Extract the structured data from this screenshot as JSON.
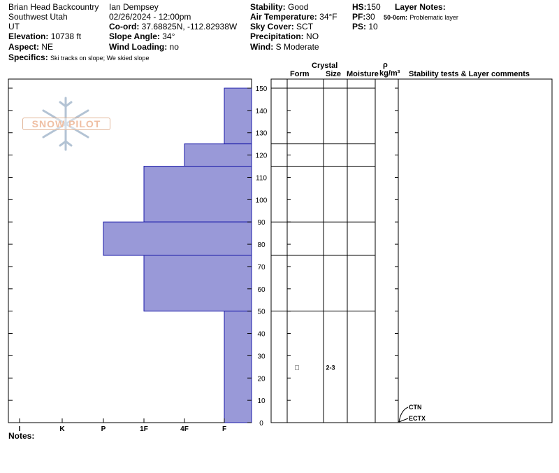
{
  "location": {
    "name": "Brian Head Backcountry",
    "region": "Southwest Utah",
    "state": "UT",
    "elevation_label": "Elevation:",
    "elevation": "10738 ft",
    "aspect_label": "Aspect:",
    "aspect": "NE",
    "specifics_label": "Specifics:",
    "specifics": "Ski tracks on slope; We skied slope"
  },
  "observer": {
    "name": "Ian Dempsey",
    "datetime": "02/26/2024 - 12:00pm",
    "coord_label": "Co-ord:",
    "coord": "37.68825N, -112.82938W",
    "slope_label": "Slope Angle:",
    "slope": "34°",
    "wind_loading_label": "Wind Loading:",
    "wind_loading": "no"
  },
  "conditions": {
    "stability_label": "Stability:",
    "stability": "Good",
    "air_temp_label": "Air Temperature:",
    "air_temp": "34°F",
    "sky_label": "Sky Cover:",
    "sky": "SCT",
    "precip_label": "Precipitation:",
    "precip": "NO",
    "wind_label": "Wind:",
    "wind": "S Moderate"
  },
  "depths": {
    "hs_label": "HS:",
    "hs": "150",
    "pf_label": "PF:",
    "pf": "30",
    "ps_label": "PS:",
    "ps": "10"
  },
  "layer_notes": {
    "title": "Layer Notes:",
    "note_range": "50-0cm:",
    "note_text": "Problematic layer"
  },
  "notes_label": "Notes:",
  "logo_text": "SNOW PILOT",
  "columns": {
    "crystal": "Crystal",
    "form": "Form",
    "size": "Size",
    "moisture": "Moisture",
    "rho": "ρ",
    "density_unit": "kg/m³",
    "stability_tests": "Stability tests & Layer comments"
  },
  "chart_data": {
    "type": "bar",
    "orientation": "horizontal-step",
    "x_axis": {
      "categories": [
        "I",
        "K",
        "P",
        "1F",
        "4F",
        "F"
      ]
    },
    "y_axis": {
      "ticks": [
        0,
        10,
        20,
        30,
        40,
        50,
        60,
        70,
        80,
        90,
        100,
        110,
        120,
        130,
        140,
        150
      ],
      "range": [
        0,
        150
      ]
    },
    "hand_hardness_layers": [
      {
        "top": 150,
        "bottom": 125,
        "hardness": "F"
      },
      {
        "top": 125,
        "bottom": 115,
        "hardness": "4F"
      },
      {
        "top": 115,
        "bottom": 90,
        "hardness": "1F"
      },
      {
        "top": 90,
        "bottom": 75,
        "hardness": "P"
      },
      {
        "top": 75,
        "bottom": 50,
        "hardness": "1F"
      },
      {
        "top": 50,
        "bottom": 0,
        "hardness": "F"
      }
    ],
    "layer_boundaries": [
      150,
      125,
      115,
      90,
      75,
      50
    ],
    "crystal_entries": [
      {
        "depth": 25,
        "form": "□",
        "size": "2-3"
      }
    ],
    "stability_tests": [
      {
        "label": "CTN",
        "depth": 0
      },
      {
        "label": "ECTX",
        "depth": 0
      }
    ],
    "colors": {
      "fill": "#9999d8",
      "stroke": "#1a1aa8"
    }
  }
}
